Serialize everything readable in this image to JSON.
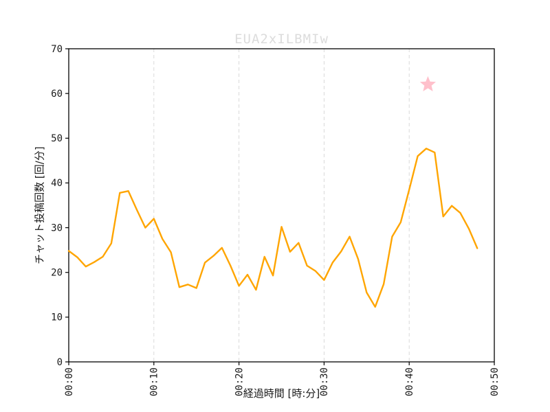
{
  "chart_data": {
    "type": "line",
    "title": "EUA2xILBMIw",
    "title_color": "#DCDCDC",
    "xlabel": "経過時間 [時:分]",
    "ylabel": "チャット投稿回数 [回/分]",
    "x_unit": "minutes elapsed",
    "x": [
      0,
      1,
      2,
      3,
      4,
      5,
      6,
      7,
      8,
      9,
      10,
      11,
      12,
      13,
      14,
      15,
      16,
      17,
      18,
      19,
      20,
      21,
      22,
      23,
      24,
      25,
      26,
      27,
      28,
      29,
      30,
      31,
      32,
      33,
      34,
      35,
      36,
      37,
      38,
      39,
      40,
      41,
      42,
      43,
      44,
      45,
      46,
      47,
      48
    ],
    "values": [
      24.8,
      23.4,
      21.3,
      22.3,
      23.5,
      26.5,
      37.8,
      38.2,
      34,
      30,
      32,
      27.5,
      24.5,
      16.7,
      17.3,
      16.5,
      22.2,
      23.7,
      25.5,
      21.5,
      17,
      19.5,
      16.1,
      23.5,
      19.3,
      30.2,
      24.6,
      26.6,
      21.5,
      20.3,
      18.3,
      22.2,
      24.7,
      28,
      23,
      15.5,
      12.3,
      17.4,
      28,
      31.2,
      38.5,
      46,
      47.7,
      46.8,
      32.5,
      34.9,
      33.3,
      29.8,
      25.4
    ],
    "series_name": "チャット投稿回数",
    "line_color": "#FFA500",
    "xlim": [
      0,
      50
    ],
    "ylim": [
      0,
      70
    ],
    "x_tick_minutes": [
      0,
      10,
      20,
      30,
      40,
      50
    ],
    "x_tick_labels": [
      "00:00",
      "00:10",
      "00:20",
      "00:30",
      "00:40",
      "00:50"
    ],
    "y_ticks": [
      0,
      10,
      20,
      30,
      40,
      50,
      60,
      70
    ],
    "grid": "vertical-dashed",
    "grid_color": "#D9D9D9",
    "axis_color": "#000000",
    "tick_label_color": "#1a1a1a",
    "legend": "none",
    "annotation_star": {
      "x": 42.2,
      "y": 62,
      "color": "#FFC0CB",
      "marker": "star"
    }
  }
}
